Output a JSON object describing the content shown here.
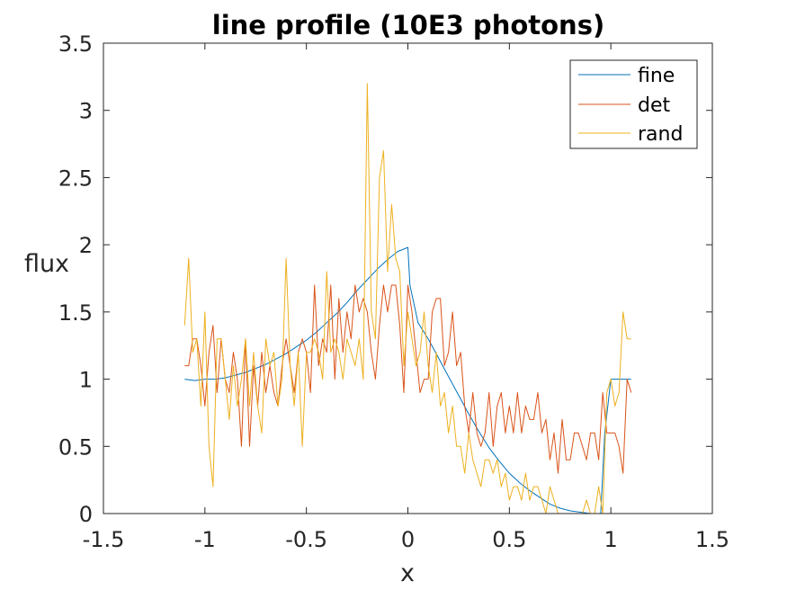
{
  "chart_data": {
    "type": "line",
    "title": "line profile (10E3 photons)",
    "xlabel": "x",
    "ylabel": "flux",
    "xlim": [
      -1.5,
      1.5
    ],
    "ylim": [
      0,
      3.5
    ],
    "xticks": [
      "-1.5",
      "-1",
      "-0.5",
      "0",
      "0.5",
      "1",
      "1.5"
    ],
    "yticks": [
      "0",
      "0.5",
      "1",
      "1.5",
      "2",
      "2.5",
      "3",
      "3.5"
    ],
    "grid": false,
    "legend_position": "top-right",
    "series": [
      {
        "name": "fine",
        "color": "#0072BD",
        "x": [
          -1.1,
          -1.05,
          -1.0,
          -0.95,
          -0.9,
          -0.85,
          -0.8,
          -0.75,
          -0.7,
          -0.65,
          -0.6,
          -0.55,
          -0.5,
          -0.45,
          -0.4,
          -0.35,
          -0.3,
          -0.25,
          -0.2,
          -0.15,
          -0.1,
          -0.05,
          0.0,
          0.01,
          0.05,
          0.1,
          0.15,
          0.2,
          0.25,
          0.3,
          0.35,
          0.4,
          0.45,
          0.5,
          0.55,
          0.6,
          0.65,
          0.7,
          0.75,
          0.8,
          0.85,
          0.9,
          0.95,
          0.97,
          1.0,
          1.05,
          1.1
        ],
        "y": [
          1.0,
          0.99,
          1.0,
          1.0,
          1.01,
          1.03,
          1.05,
          1.08,
          1.11,
          1.15,
          1.19,
          1.24,
          1.29,
          1.35,
          1.42,
          1.49,
          1.57,
          1.66,
          1.74,
          1.82,
          1.89,
          1.95,
          1.98,
          1.7,
          1.42,
          1.3,
          1.16,
          1.02,
          0.88,
          0.74,
          0.61,
          0.49,
          0.39,
          0.3,
          0.23,
          0.17,
          0.12,
          0.07,
          0.04,
          0.02,
          0.01,
          0.0,
          0.0,
          0.6,
          1.0,
          1.0,
          1.0
        ]
      },
      {
        "name": "det",
        "color": "#D95319",
        "x": [
          -1.1,
          -1.08,
          -1.06,
          -1.04,
          -1.02,
          -1.0,
          -0.98,
          -0.96,
          -0.94,
          -0.92,
          -0.9,
          -0.88,
          -0.86,
          -0.84,
          -0.82,
          -0.8,
          -0.78,
          -0.76,
          -0.74,
          -0.72,
          -0.7,
          -0.68,
          -0.66,
          -0.64,
          -0.62,
          -0.6,
          -0.58,
          -0.56,
          -0.54,
          -0.52,
          -0.5,
          -0.48,
          -0.46,
          -0.44,
          -0.42,
          -0.4,
          -0.38,
          -0.36,
          -0.34,
          -0.32,
          -0.3,
          -0.28,
          -0.26,
          -0.24,
          -0.22,
          -0.2,
          -0.18,
          -0.16,
          -0.14,
          -0.12,
          -0.1,
          -0.08,
          -0.06,
          -0.04,
          -0.02,
          0.0,
          0.02,
          0.04,
          0.06,
          0.08,
          0.1,
          0.12,
          0.14,
          0.16,
          0.18,
          0.2,
          0.22,
          0.24,
          0.26,
          0.28,
          0.3,
          0.32,
          0.34,
          0.36,
          0.38,
          0.4,
          0.42,
          0.44,
          0.46,
          0.48,
          0.5,
          0.52,
          0.54,
          0.56,
          0.58,
          0.6,
          0.62,
          0.64,
          0.66,
          0.68,
          0.7,
          0.72,
          0.74,
          0.76,
          0.78,
          0.8,
          0.82,
          0.84,
          0.86,
          0.88,
          0.9,
          0.92,
          0.94,
          0.96,
          0.98,
          1.0,
          1.02,
          1.04,
          1.06,
          1.08,
          1.1
        ],
        "y": [
          1.1,
          1.1,
          1.3,
          1.3,
          1.1,
          0.8,
          1.2,
          1.4,
          0.9,
          1.3,
          1.0,
          0.9,
          1.2,
          1.0,
          0.5,
          1.3,
          0.5,
          1.1,
          0.8,
          1.2,
          0.9,
          1.1,
          0.9,
          0.8,
          1.1,
          1.3,
          1.1,
          0.9,
          1.2,
          1.3,
          1.2,
          0.9,
          1.7,
          1.1,
          1.3,
          1.2,
          1.7,
          1.0,
          1.6,
          1.2,
          1.5,
          1.3,
          1.7,
          1.5,
          1.6,
          1.5,
          1.2,
          1.0,
          1.4,
          1.7,
          1.5,
          1.7,
          1.7,
          1.4,
          0.9,
          1.7,
          1.5,
          1.2,
          0.9,
          1.0,
          1.0,
          1.5,
          1.6,
          1.6,
          1.1,
          1.2,
          1.5,
          1.1,
          1.2,
          0.8,
          0.6,
          0.9,
          0.6,
          0.5,
          0.6,
          0.9,
          0.5,
          0.8,
          0.9,
          0.6,
          0.8,
          0.6,
          0.9,
          0.6,
          0.8,
          0.7,
          0.7,
          0.9,
          0.6,
          0.7,
          0.4,
          0.6,
          0.3,
          0.7,
          0.4,
          0.4,
          0.6,
          0.6,
          0.5,
          0.4,
          0.6,
          0.6,
          0.4,
          0.9,
          0.6,
          0.6,
          0.6,
          0.5,
          0.3,
          1.0,
          0.9
        ],
        "note": ""
      },
      {
        "name": "rand",
        "color": "#EDB120",
        "x": [
          -1.1,
          -1.08,
          -1.06,
          -1.04,
          -1.02,
          -1.0,
          -0.98,
          -0.96,
          -0.94,
          -0.92,
          -0.9,
          -0.88,
          -0.86,
          -0.84,
          -0.82,
          -0.8,
          -0.78,
          -0.76,
          -0.74,
          -0.72,
          -0.7,
          -0.68,
          -0.66,
          -0.64,
          -0.62,
          -0.6,
          -0.58,
          -0.56,
          -0.54,
          -0.52,
          -0.5,
          -0.48,
          -0.46,
          -0.44,
          -0.42,
          -0.4,
          -0.38,
          -0.36,
          -0.34,
          -0.32,
          -0.3,
          -0.28,
          -0.26,
          -0.24,
          -0.22,
          -0.2,
          -0.18,
          -0.16,
          -0.14,
          -0.12,
          -0.1,
          -0.08,
          -0.06,
          -0.04,
          -0.02,
          0.0,
          0.02,
          0.04,
          0.06,
          0.08,
          0.1,
          0.12,
          0.14,
          0.16,
          0.18,
          0.2,
          0.22,
          0.24,
          0.26,
          0.28,
          0.3,
          0.32,
          0.34,
          0.36,
          0.38,
          0.4,
          0.42,
          0.44,
          0.46,
          0.48,
          0.5,
          0.52,
          0.54,
          0.56,
          0.58,
          0.6,
          0.62,
          0.64,
          0.66,
          0.68,
          0.7,
          0.72,
          0.74,
          0.76,
          0.78,
          0.8,
          0.82,
          0.84,
          0.86,
          0.88,
          0.9,
          0.92,
          0.94,
          0.96,
          0.98,
          1.0,
          1.02,
          1.04,
          1.06,
          1.08,
          1.1
        ],
        "y": [
          1.4,
          1.9,
          1.2,
          1.3,
          0.8,
          1.5,
          0.5,
          0.2,
          1.3,
          1.3,
          1.0,
          0.7,
          1.1,
          0.8,
          1.0,
          1.3,
          0.8,
          1.2,
          0.8,
          0.6,
          1.3,
          1.1,
          1.2,
          0.8,
          1.0,
          1.9,
          1.1,
          0.8,
          1.2,
          0.5,
          1.2,
          1.2,
          1.3,
          1.2,
          1.0,
          1.8,
          1.2,
          1.3,
          1.2,
          1.0,
          1.3,
          1.2,
          1.1,
          1.3,
          1.0,
          3.2,
          1.5,
          1.3,
          2.5,
          2.7,
          1.8,
          2.3,
          1.9,
          1.8,
          1.1,
          1.5,
          1.3,
          1.1,
          1.2,
          1.5,
          1.1,
          0.9,
          1.2,
          0.8,
          0.9,
          0.6,
          0.8,
          0.5,
          0.5,
          0.3,
          0.6,
          0.4,
          0.3,
          0.2,
          0.4,
          0.4,
          0.3,
          0.4,
          0.2,
          0.3,
          0.1,
          0.2,
          0.2,
          0.1,
          0.3,
          0.1,
          0.2,
          0.2,
          0.1,
          0.0,
          0.2,
          0.1,
          0.0,
          0.0,
          0.0,
          0.0,
          0.0,
          0.0,
          0.0,
          0.1,
          0.0,
          0.0,
          0.2,
          0.0,
          0.9,
          1.0,
          0.8,
          0.9,
          1.5,
          1.3,
          1.3
        ]
      }
    ]
  }
}
